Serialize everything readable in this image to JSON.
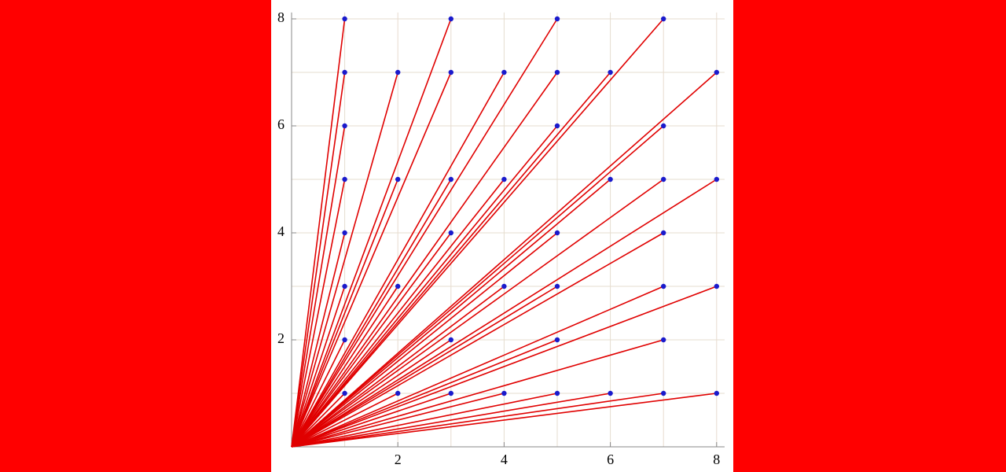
{
  "chart_data": {
    "type": "scatter",
    "x": [
      1,
      1,
      1,
      1,
      1,
      1,
      1,
      1,
      2,
      2,
      2,
      2,
      3,
      3,
      3,
      3,
      3,
      3,
      4,
      4,
      4,
      4,
      5,
      5,
      5,
      5,
      5,
      5,
      5,
      6,
      6,
      6,
      7,
      7,
      7,
      7,
      7,
      7,
      7,
      8,
      8,
      8,
      8
    ],
    "y": [
      1,
      2,
      3,
      4,
      5,
      6,
      7,
      8,
      1,
      3,
      5,
      7,
      1,
      2,
      4,
      5,
      7,
      8,
      1,
      3,
      5,
      7,
      1,
      2,
      3,
      4,
      6,
      7,
      8,
      1,
      5,
      7,
      1,
      2,
      3,
      4,
      5,
      6,
      8,
      1,
      3,
      5,
      7
    ],
    "xlim": [
      0,
      8.15
    ],
    "ylim": [
      0,
      8.12
    ],
    "xticks": [
      2,
      4,
      6,
      8
    ],
    "yticks": [
      2,
      4,
      6,
      8
    ],
    "xgrid": [
      1,
      2,
      3,
      4,
      5,
      6,
      7,
      8
    ],
    "ygrid": [
      1,
      2,
      3,
      4,
      5,
      6,
      7,
      8
    ],
    "line_color": "#e00000",
    "point_color": "#1a1acc"
  }
}
